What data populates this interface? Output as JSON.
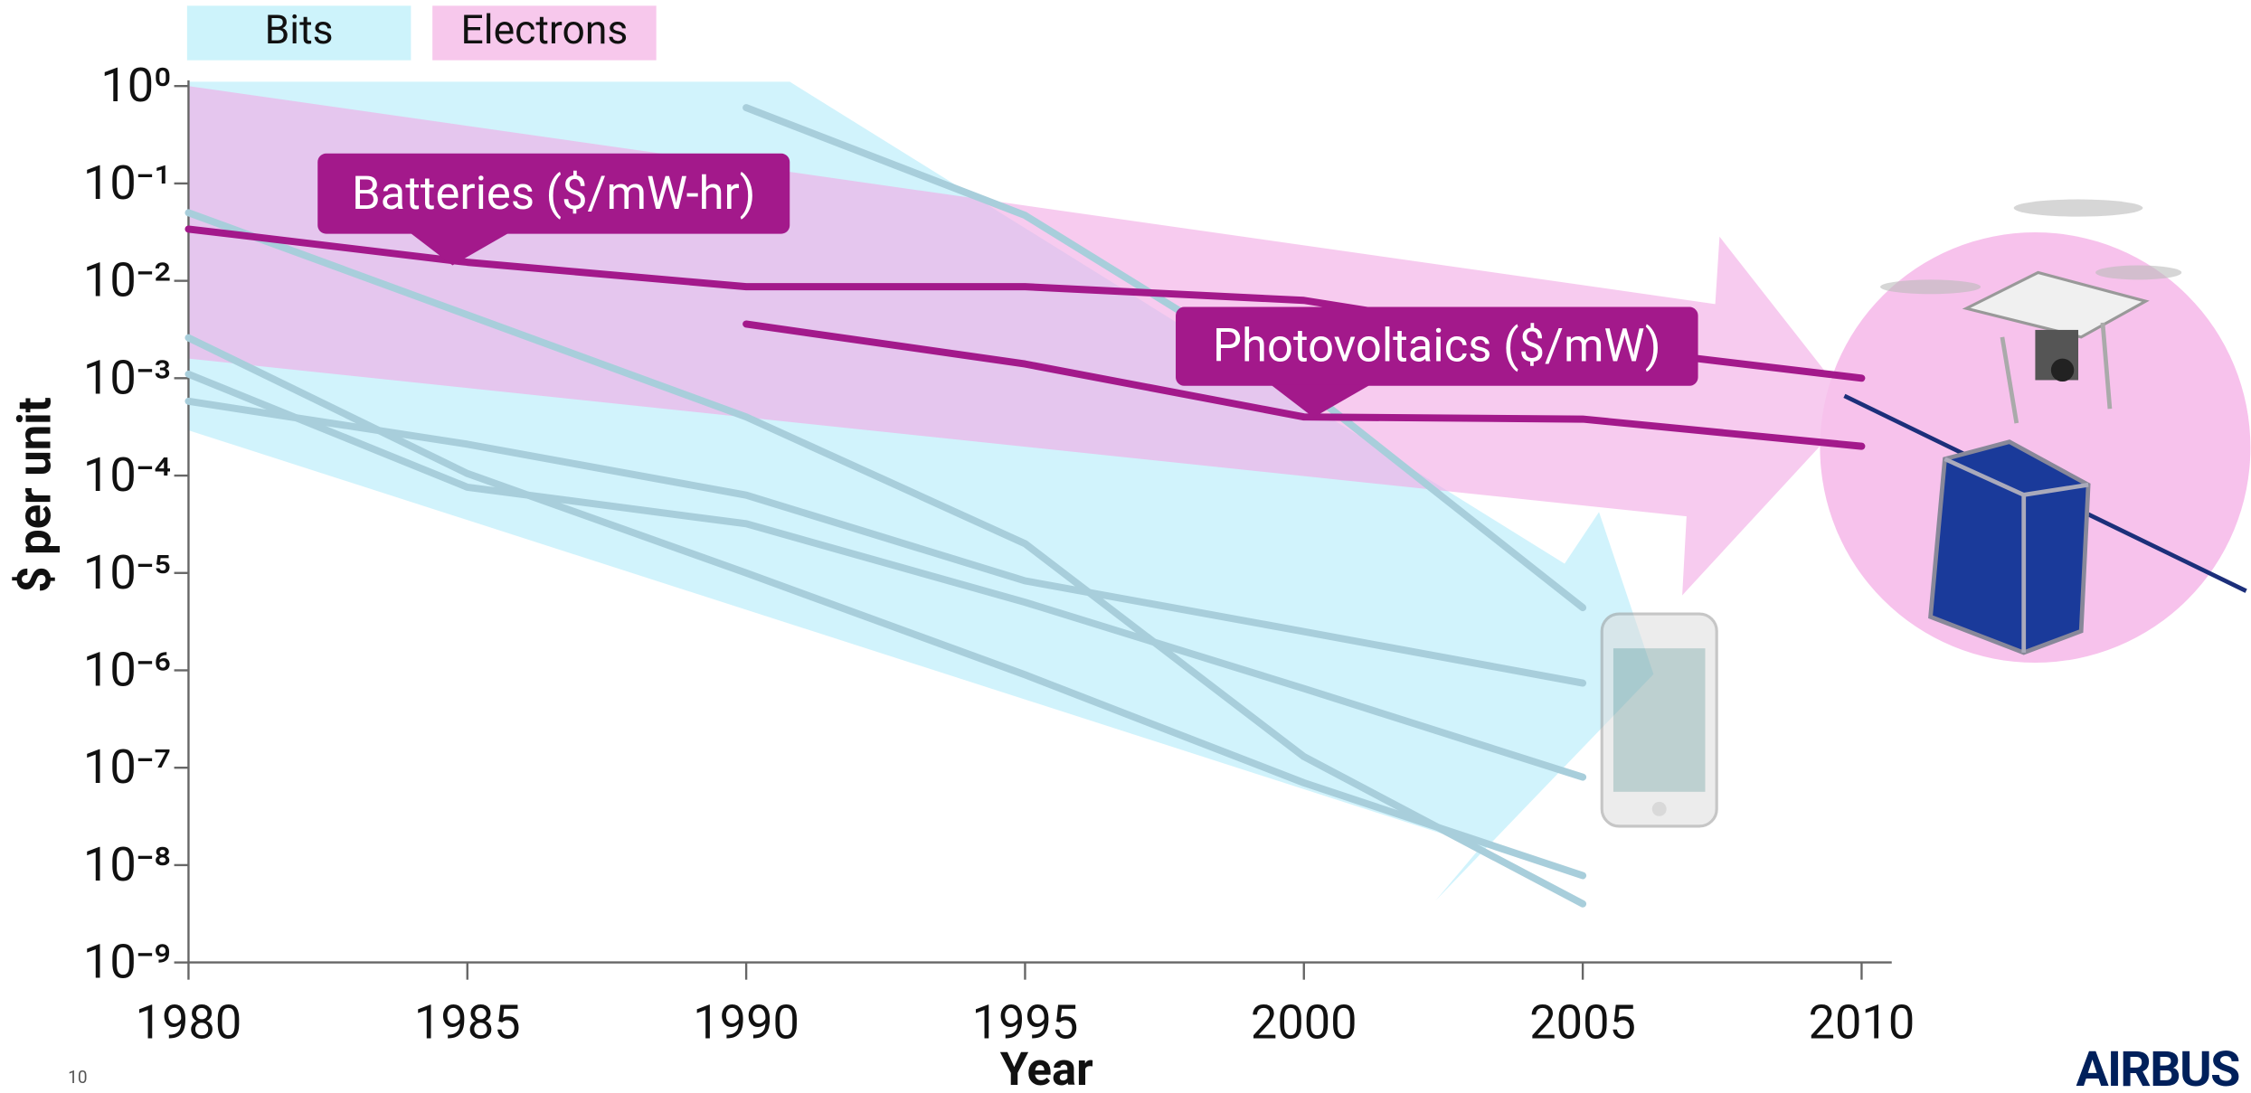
{
  "chart_data": {
    "type": "line",
    "log_y": true,
    "xlabel": "Year",
    "ylabel": "$ per unit",
    "xlim": [
      1980,
      2010
    ],
    "xticks": [
      1980,
      1985,
      1990,
      1995,
      2000,
      2005,
      2010
    ],
    "ylim": [
      1e-09,
      1
    ],
    "yticks": [
      {
        "value": 1e-09,
        "label": "10⁻⁹"
      },
      {
        "value": 1e-08,
        "label": "10⁻⁸"
      },
      {
        "value": 1e-07,
        "label": "10⁻⁷"
      },
      {
        "value": 1e-06,
        "label": "10⁻⁶"
      },
      {
        "value": 1e-05,
        "label": "10⁻⁵"
      },
      {
        "value": 0.0001,
        "label": "10⁻⁴"
      },
      {
        "value": 0.001,
        "label": "10⁻³"
      },
      {
        "value": 0.01,
        "label": "10⁻²"
      },
      {
        "value": 0.1,
        "label": "10⁻¹"
      },
      {
        "value": 1,
        "label": "10⁰"
      }
    ],
    "grid": true,
    "legend": [
      {
        "name": "Bits",
        "color": "#cdf3fb"
      },
      {
        "name": "Electrons",
        "color": "#f7c8ec"
      }
    ],
    "series": [
      {
        "name": "Batteries ($/mW-hr)",
        "color": "#a3198b",
        "x": [
          1980,
          1985,
          1990,
          1995,
          2000,
          2005,
          2010
        ],
        "values": [
          0.034,
          0.0155,
          0.0087,
          0.0087,
          0.0063,
          0.0022,
          0.001
        ]
      },
      {
        "name": "Photovoltaics ($/mW)",
        "color": "#a3198b",
        "x": [
          1990,
          1995,
          2000,
          2005,
          2010
        ],
        "values": [
          0.0036,
          0.0014,
          0.0004,
          0.00038,
          0.0002
        ]
      },
      {
        "color": "#a8cedb",
        "x": [
          1990,
          1995,
          2000,
          2005
        ],
        "values": [
          0.6,
          0.047,
          0.0008,
          4.4e-06
        ]
      },
      {
        "color": "#a8cedb",
        "x": [
          1980,
          1990,
          1995,
          2000,
          2005
        ],
        "values": [
          0.05,
          0.0004,
          2e-05,
          1.3e-07,
          4e-09
        ]
      },
      {
        "color": "#a8cedb",
        "x": [
          1980,
          1985,
          1990,
          1995,
          2000,
          2005
        ],
        "values": [
          0.0026,
          0.000105,
          1e-05,
          9e-07,
          7e-08,
          7.8e-09
        ]
      },
      {
        "color": "#a8cedb",
        "x": [
          1980,
          1985,
          1990,
          1995,
          2000,
          2005
        ],
        "values": [
          0.0011,
          7.6e-05,
          3.2e-05,
          5e-06,
          6.5e-07,
          8e-08
        ]
      },
      {
        "color": "#a8cedb",
        "x": [
          1980,
          1985,
          1990,
          1995,
          2000,
          2005
        ],
        "values": [
          0.00058,
          0.00021,
          6.3e-05,
          8.3e-06,
          2.5e-06,
          7.4e-07
        ]
      }
    ]
  },
  "page_number": "10",
  "logo": "AIRBUS"
}
